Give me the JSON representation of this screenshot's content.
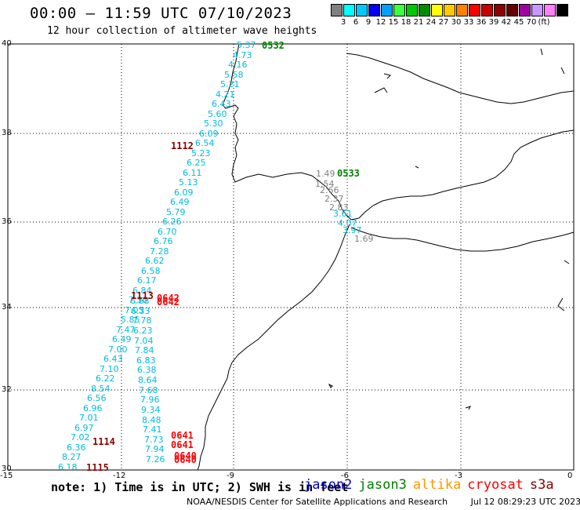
{
  "header": {
    "title": "00:00 — 11:59 UTC 07/10/2023",
    "subtitle": "12 hour collection of altimeter wave heights"
  },
  "colorbar": {
    "colors": [
      "#808080",
      "#00ffff",
      "#00c8ff",
      "#0000ff",
      "#00a0ff",
      "#40ff40",
      "#00c800",
      "#008c00",
      "#ffff00",
      "#ffc800",
      "#ff8000",
      "#ff0000",
      "#c80000",
      "#8c0000",
      "#640000",
      "#a000a0",
      "#c896ff",
      "#ff80ff",
      "#000000"
    ],
    "labels": [
      "3",
      "6",
      "9",
      "12",
      "15",
      "18",
      "21",
      "24",
      "27",
      "30",
      "33",
      "36",
      "39",
      "42",
      "45",
      "70",
      "(ft)"
    ]
  },
  "axes": {
    "lat_labels": [
      "40",
      "38",
      "36",
      "34",
      "32",
      "30"
    ],
    "lon_labels": [
      "-15",
      "-12",
      "-9",
      "-6",
      "-3",
      "0"
    ]
  },
  "tracks": {
    "west_values": [
      "5.37",
      "4.73",
      "4.16",
      "5.58",
      "5.21",
      "4.21",
      "6.43",
      "5.60",
      "5.30",
      "6.09",
      "6.54",
      "5.23",
      "6.25",
      "6.11",
      "5.13",
      "6.09",
      "6.49",
      "5.79",
      "6.26",
      "6.70",
      "6.76",
      "7.28",
      "6.62",
      "6.58",
      "6.17",
      "6.84",
      "7.30",
      "7.05",
      "5.85",
      "7.47",
      "6.49",
      "7.00",
      "6.43",
      "7.10",
      "6.22",
      "8.54",
      "6.56",
      "6.96",
      "7.01",
      "6.97",
      "7.02",
      "6.36",
      "8.27",
      "6.18"
    ],
    "mid_values": [
      "6.68",
      "6.33",
      "7.78",
      "6.23",
      "7.04",
      "7.84",
      "6.83",
      "6.38",
      "8.64",
      "7.68",
      "7.96",
      "9.34",
      "8.48",
      "7.41",
      "7.73",
      "7.94",
      "7.26"
    ],
    "strait_values": [
      "1.49",
      "1.54",
      "2.66",
      "2.37",
      "2.83",
      "3.61",
      "4.07",
      "3.97",
      "1.69"
    ]
  },
  "time_labels": [
    {
      "text": "0532",
      "color": "#008000"
    },
    {
      "text": "1112",
      "color": "#8b0000"
    },
    {
      "text": "0533",
      "color": "#008000"
    },
    {
      "text": "1113",
      "color": "#8b0000"
    },
    {
      "text": "0642",
      "color": "#ff0000"
    },
    {
      "text": "0642",
      "color": "#ff0000"
    },
    {
      "text": "0641",
      "color": "#ff0000"
    },
    {
      "text": "0641",
      "color": "#ff0000"
    },
    {
      "text": "1114",
      "color": "#8b0000"
    },
    {
      "text": "0640",
      "color": "#ff0000"
    },
    {
      "text": "0640",
      "color": "#ff0000"
    },
    {
      "text": "1115",
      "color": "#8b0000"
    }
  ],
  "footer": {
    "note": "note: 1) Time is in UTC; 2) SWH is in feet",
    "credits": "NOAA/NESDIS Center for Satellite Applications and Research",
    "timestamp": "Jul 12 08:29:23 UTC 2023"
  },
  "satellites": [
    {
      "name": "jason2",
      "color": "#0000cc"
    },
    {
      "name": "jason3",
      "color": "#008000"
    },
    {
      "name": "altika",
      "color": "#ff9900"
    },
    {
      "name": "cryosat",
      "color": "#ff0000"
    },
    {
      "name": "s3a",
      "color": "#8b0000"
    }
  ]
}
